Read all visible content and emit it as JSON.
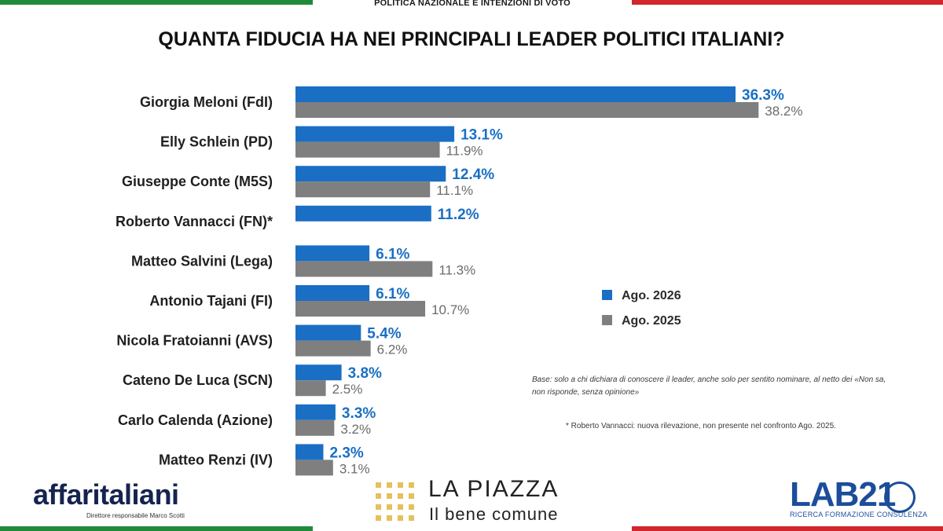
{
  "header": {
    "section_label": "POLITICA NAZIONALE E INTENZIONI DI VOTO"
  },
  "title": "QUANTA FIDUCIA HA NEI PRINCIPALI LEADER POLITICI ITALIANI?",
  "chart_data": {
    "type": "bar",
    "orientation": "horizontal",
    "title": "QUANTA FIDUCIA HA NEI PRINCIPALI LEADER POLITICI ITALIANI?",
    "categories": [
      "Giorgia Meloni (FdI)",
      "Elly Schlein (PD)",
      "Giuseppe Conte (M5S)",
      "Roberto Vannacci (FN)*",
      "Matteo Salvini (Lega)",
      "Antonio Tajani (FI)",
      "Nicola Fratoianni (AVS)",
      "Cateno De Luca (SCN)",
      "Carlo Calenda (Azione)",
      "Matteo Renzi (IV)"
    ],
    "series": [
      {
        "name": "Ago. 2026",
        "color": "#1a6fc4",
        "values": [
          36.3,
          13.1,
          12.4,
          11.2,
          6.1,
          6.1,
          5.4,
          3.8,
          3.3,
          2.3
        ],
        "labels": [
          "36.3%",
          "13.1%",
          "12.4%",
          "11.2%",
          "6.1%",
          "6.1%",
          "5.4%",
          "3.8%",
          "3.3%",
          "2.3%"
        ]
      },
      {
        "name": "Ago. 2025",
        "color": "#7f7f7f",
        "values": [
          38.2,
          11.9,
          11.1,
          null,
          11.3,
          10.7,
          6.2,
          2.5,
          3.2,
          3.1
        ],
        "labels": [
          "38.2%",
          "11.9%",
          "11.1%",
          "",
          "11.3%",
          "10.7%",
          "6.2%",
          "2.5%",
          "3.2%",
          "3.1%"
        ]
      }
    ],
    "xlim": [
      0,
      40
    ],
    "grid": false,
    "legend_position": "right"
  },
  "legend": [
    {
      "label": "Ago. 2026",
      "color": "#1a6fc4"
    },
    {
      "label": "Ago. 2025",
      "color": "#7f7f7f"
    }
  ],
  "notes": {
    "base": "Base: solo a chi dichiara di conoscere il leader, anche solo per sentito nominare, al netto dei «Non sa, non risponde, senza opinione»",
    "footnote": "* Roberto Vannacci: nuova rilevazione, non presente nel confronto Ago. 2025."
  },
  "footer": {
    "affari_logo": "affaritaliani",
    "affari_sub": "Direttore responsabile Marco Scotti",
    "piazza_title": "LA PIAZZA",
    "piazza_sub": "Il bene comune",
    "lab_logo": "LAB21",
    "lab_sub": "RICERCA FORMAZIONE CONSULENZA"
  }
}
